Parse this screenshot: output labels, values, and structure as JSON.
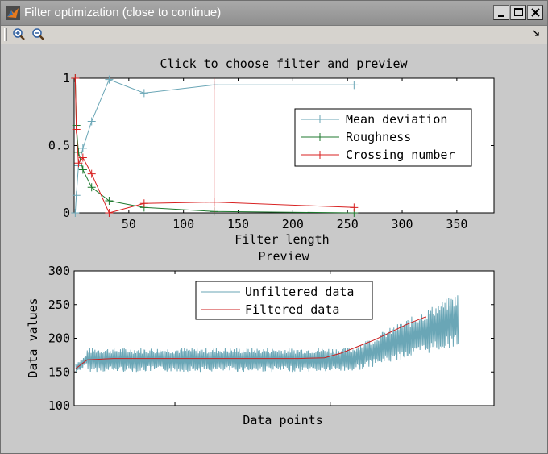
{
  "window": {
    "title": "Filter optimization (close to continue)"
  },
  "toolbar": {
    "icons": [
      "zoom-in-icon",
      "zoom-out-icon",
      "toolbar-dock-arrow-icon"
    ]
  },
  "plot_top": {
    "title": "Click to choose filter and preview",
    "xlabel": "Filter length",
    "x_ticks": [
      "50",
      "100",
      "150",
      "200",
      "250",
      "300",
      "350"
    ],
    "y_ticks": [
      "0",
      "0.5",
      "1"
    ],
    "legend": [
      "Mean deviation",
      "Roughness",
      "Crossing number"
    ],
    "selected_filter_marker": 128
  },
  "plot_bottom": {
    "title": "Preview",
    "xlabel": "Data points",
    "ylabel": "Data values",
    "y_ticks": [
      "100",
      "150",
      "200",
      "250",
      "300"
    ],
    "legend": [
      "Unfiltered data",
      "Filtered data"
    ]
  },
  "colors": {
    "mean_deviation": "#6aa6b6",
    "roughness": "#1f7a2f",
    "crossing_number": "#d82020",
    "unfiltered": "#6aa6b6",
    "filtered": "#cc1f1f",
    "axes_bg": "#ffffff",
    "figure_bg": "#c9c9c9"
  },
  "chart_data": [
    {
      "type": "line",
      "title": "Click to choose filter and preview",
      "xlabel": "Filter length",
      "ylabel": "",
      "xlim": [
        0,
        384
      ],
      "ylim": [
        0,
        1
      ],
      "grid": false,
      "legend_position": "top-right",
      "series": [
        {
          "name": "Mean deviation",
          "x": [
            1,
            2,
            4,
            8,
            16,
            32,
            64,
            128,
            256
          ],
          "y": [
            0.0,
            0.13,
            0.35,
            0.48,
            0.68,
            0.99,
            0.89,
            0.95,
            0.95
          ]
        },
        {
          "name": "Roughness",
          "x": [
            1,
            2,
            4,
            8,
            16,
            32,
            64,
            128,
            256
          ],
          "y": [
            1.0,
            0.65,
            0.45,
            0.32,
            0.19,
            0.09,
            0.04,
            0.01,
            0.0
          ]
        },
        {
          "name": "Crossing number",
          "x": [
            1,
            2,
            4,
            8,
            16,
            32,
            64,
            128,
            256
          ],
          "y": [
            1.0,
            0.62,
            0.37,
            0.41,
            0.29,
            0.0,
            0.07,
            0.08,
            0.04
          ]
        }
      ],
      "vertical_marker_x": 128
    },
    {
      "type": "line",
      "title": "Preview",
      "xlabel": "Data points",
      "ylabel": "Data values",
      "ylim": [
        100,
        300
      ],
      "grid": false,
      "legend_position": "top-center",
      "series": [
        {
          "name": "Unfiltered data",
          "description_values": {
            "baseline": 170,
            "noise_amplitude": 18,
            "late_rise_to": 230,
            "late_noise_amplitude": 40
          }
        },
        {
          "name": "Filtered data",
          "values": [
            155,
            168,
            170,
            170,
            170,
            170,
            170,
            170,
            170,
            170,
            171,
            178,
            188,
            198,
            210,
            222,
            232
          ]
        }
      ]
    }
  ]
}
